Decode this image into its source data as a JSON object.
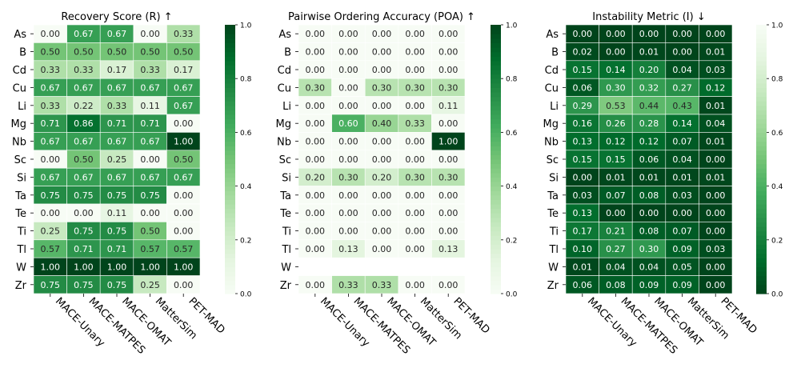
{
  "chart_data": [
    {
      "type": "heatmap",
      "title": "Recovery Score (R) ↑",
      "rows": [
        "As",
        "B",
        "Cd",
        "Cu",
        "Li",
        "Mg",
        "Nb",
        "Sc",
        "Si",
        "Ta",
        "Te",
        "Ti",
        "Tl",
        "W",
        "Zr"
      ],
      "columns": [
        "MACE-Unary",
        "MACE-MATPES",
        "MACE-OMAT",
        "MatterSim",
        "PET-MAD"
      ],
      "values": [
        [
          0.0,
          0.67,
          0.67,
          0.0,
          0.33
        ],
        [
          0.5,
          0.5,
          0.5,
          0.5,
          0.5
        ],
        [
          0.33,
          0.33,
          0.17,
          0.33,
          0.17
        ],
        [
          0.67,
          0.67,
          0.67,
          0.67,
          0.67
        ],
        [
          0.33,
          0.22,
          0.33,
          0.11,
          0.67
        ],
        [
          0.71,
          0.86,
          0.71,
          0.71,
          0.0
        ],
        [
          0.67,
          0.67,
          0.67,
          0.67,
          1.0
        ],
        [
          0.0,
          0.5,
          0.25,
          0.0,
          0.5
        ],
        [
          0.67,
          0.67,
          0.67,
          0.67,
          0.67
        ],
        [
          0.75,
          0.75,
          0.75,
          0.75,
          0.0
        ],
        [
          0.0,
          0.0,
          0.11,
          0.0,
          0.0
        ],
        [
          0.25,
          0.75,
          0.75,
          0.5,
          0.0
        ],
        [
          0.57,
          0.71,
          0.71,
          0.57,
          0.57
        ],
        [
          1.0,
          1.0,
          1.0,
          1.0,
          1.0
        ],
        [
          0.75,
          0.75,
          0.75,
          0.25,
          0.0
        ]
      ],
      "colormap": "Greens",
      "vmin": 0.0,
      "vmax": 1.0,
      "colorbar_ticks": [
        "0.0",
        "0.2",
        "0.4",
        "0.6",
        "0.8",
        "1.0"
      ]
    },
    {
      "type": "heatmap",
      "title": "Pairwise Ordering Accuracy (POA) ↑",
      "rows": [
        "As",
        "B",
        "Cd",
        "Cu",
        "Li",
        "Mg",
        "Nb",
        "Sc",
        "Si",
        "Ta",
        "Te",
        "Ti",
        "Tl",
        "W",
        "Zr"
      ],
      "columns": [
        "MACE-Unary",
        "MACE-MATPES",
        "MACE-OMAT",
        "MatterSim",
        "PET-MAD"
      ],
      "values": [
        [
          0.0,
          0.0,
          0.0,
          0.0,
          0.0
        ],
        [
          0.0,
          0.0,
          0.0,
          0.0,
          0.0
        ],
        [
          0.0,
          0.0,
          0.0,
          0.0,
          0.0
        ],
        [
          0.3,
          0.0,
          0.3,
          0.3,
          0.3
        ],
        [
          0.0,
          0.0,
          0.0,
          0.0,
          0.11
        ],
        [
          0.0,
          0.6,
          0.4,
          0.33,
          0.0
        ],
        [
          0.0,
          0.0,
          0.0,
          0.0,
          1.0
        ],
        [
          0.0,
          0.0,
          0.0,
          0.0,
          0.0
        ],
        [
          0.2,
          0.3,
          0.2,
          0.3,
          0.3
        ],
        [
          0.0,
          0.0,
          0.0,
          0.0,
          0.0
        ],
        [
          0.0,
          0.0,
          0.0,
          0.0,
          0.0
        ],
        [
          0.0,
          0.0,
          0.0,
          0.0,
          0.0
        ],
        [
          0.0,
          0.13,
          0.0,
          0.0,
          0.13
        ],
        [
          null,
          null,
          null,
          null,
          null
        ],
        [
          0.0,
          0.33,
          0.33,
          0.0,
          0.0
        ]
      ],
      "colormap": "Greens",
      "vmin": 0.0,
      "vmax": 1.0,
      "colorbar_ticks": [
        "0.0",
        "0.2",
        "0.4",
        "0.6",
        "0.8",
        "1.0"
      ]
    },
    {
      "type": "heatmap",
      "title": "Instability Metric (I) ↓",
      "rows": [
        "As",
        "B",
        "Cd",
        "Cu",
        "Li",
        "Mg",
        "Nb",
        "Sc",
        "Si",
        "Ta",
        "Te",
        "Ti",
        "Tl",
        "W",
        "Zr"
      ],
      "columns": [
        "MACE-Unary",
        "MACE-MATPES",
        "MACE-OMAT",
        "MatterSim",
        "PET-MAD"
      ],
      "values": [
        [
          0.0,
          0.0,
          0.0,
          0.0,
          0.0
        ],
        [
          0.02,
          0.0,
          0.01,
          0.0,
          0.01
        ],
        [
          0.15,
          0.14,
          0.2,
          0.04,
          0.03
        ],
        [
          0.06,
          0.3,
          0.32,
          0.27,
          0.12
        ],
        [
          0.29,
          0.53,
          0.44,
          0.43,
          0.01
        ],
        [
          0.16,
          0.26,
          0.28,
          0.14,
          0.04
        ],
        [
          0.13,
          0.12,
          0.12,
          0.07,
          0.01
        ],
        [
          0.15,
          0.15,
          0.06,
          0.04,
          0.0
        ],
        [
          0.0,
          0.01,
          0.01,
          0.01,
          0.01
        ],
        [
          0.03,
          0.07,
          0.08,
          0.03,
          0.0
        ],
        [
          0.13,
          0.0,
          0.0,
          0.0,
          0.0
        ],
        [
          0.17,
          0.21,
          0.08,
          0.07,
          0.0
        ],
        [
          0.1,
          0.27,
          0.3,
          0.09,
          0.03
        ],
        [
          0.01,
          0.04,
          0.04,
          0.05,
          0.0
        ],
        [
          0.06,
          0.08,
          0.09,
          0.09,
          0.0
        ]
      ],
      "colormap": "Greens_r",
      "vmin": 0.0,
      "vmax": 1.0,
      "colorbar_ticks": [
        "0.0",
        "0.2",
        "0.4",
        "0.6",
        "0.8",
        "1.0"
      ]
    }
  ]
}
